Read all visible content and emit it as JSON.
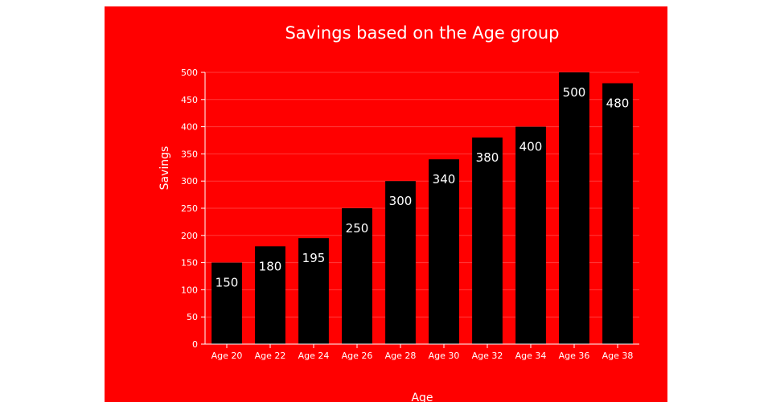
{
  "colors": {
    "background": "#ff0000",
    "bar": "#000000",
    "text": "#ffffff",
    "grid": "#ff3b3b"
  },
  "chart_data": {
    "type": "bar",
    "title": "Savings based on the Age group",
    "xlabel": "Age",
    "ylabel": "Savings",
    "categories": [
      "Age 20",
      "Age 22",
      "Age 24",
      "Age 26",
      "Age 28",
      "Age 30",
      "Age 32",
      "Age 34",
      "Age 36",
      "Age 38"
    ],
    "values": [
      150,
      180,
      195,
      250,
      300,
      340,
      380,
      400,
      500,
      480
    ],
    "ylim": [
      0,
      500
    ],
    "yticks": [
      0,
      50,
      100,
      150,
      200,
      250,
      300,
      350,
      400,
      450,
      500
    ],
    "grid": true,
    "legend": "none"
  }
}
